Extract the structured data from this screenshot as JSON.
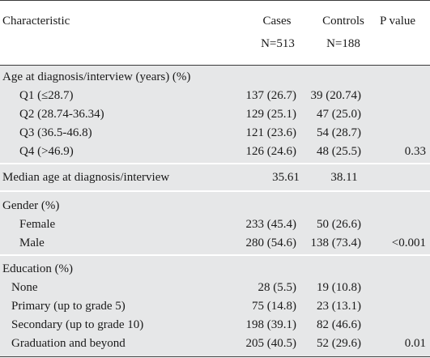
{
  "header": {
    "characteristic": "Characteristic",
    "cases": "Cases",
    "cases_n": "N=513",
    "controls": "Controls",
    "controls_n": "N=188",
    "p_value": "P value"
  },
  "age": {
    "title": "Age at diagnosis/interview (years) (%)",
    "rows": [
      {
        "label": "Q1 (≤28.7)",
        "cases": "137 (26.7)",
        "controls": "39 (20.74)",
        "p": ""
      },
      {
        "label": "Q2 (28.74-36.34)",
        "cases": "129 (25.1)",
        "controls": "47 (25.0)",
        "p": ""
      },
      {
        "label": "Q3 (36.5-46.8)",
        "cases": "121 (23.6)",
        "controls": "54 (28.7)",
        "p": ""
      },
      {
        "label": "Q4 (>46.9)",
        "cases": "126 (24.6)",
        "controls": "48 (25.5)",
        "p": "0.33"
      }
    ]
  },
  "median": {
    "label": "Median age at diagnosis/interview",
    "cases": "35.61",
    "controls": "38.11"
  },
  "gender": {
    "title": "Gender (%)",
    "rows": [
      {
        "label": "Female",
        "cases": "233 (45.4)",
        "controls": "50 (26.6)",
        "p": ""
      },
      {
        "label": "Male",
        "cases": "280 (54.6)",
        "controls": "138 (73.4)",
        "p": "<0.001"
      }
    ]
  },
  "education": {
    "title": "Education (%)",
    "rows": [
      {
        "label": "None",
        "cases": "28 (5.5)",
        "controls": "19 (10.8)",
        "p": ""
      },
      {
        "label": "Primary (up to grade 5)",
        "cases": "75 (14.8)",
        "controls": "23 (13.1)",
        "p": ""
      },
      {
        "label": "Secondary (up to grade 10)",
        "cases": "198 (39.1)",
        "controls": "82 (46.6)",
        "p": ""
      },
      {
        "label": "Graduation and beyond",
        "cases": "205 (40.5)",
        "controls": "52 (29.6)",
        "p": "0.01"
      }
    ]
  }
}
